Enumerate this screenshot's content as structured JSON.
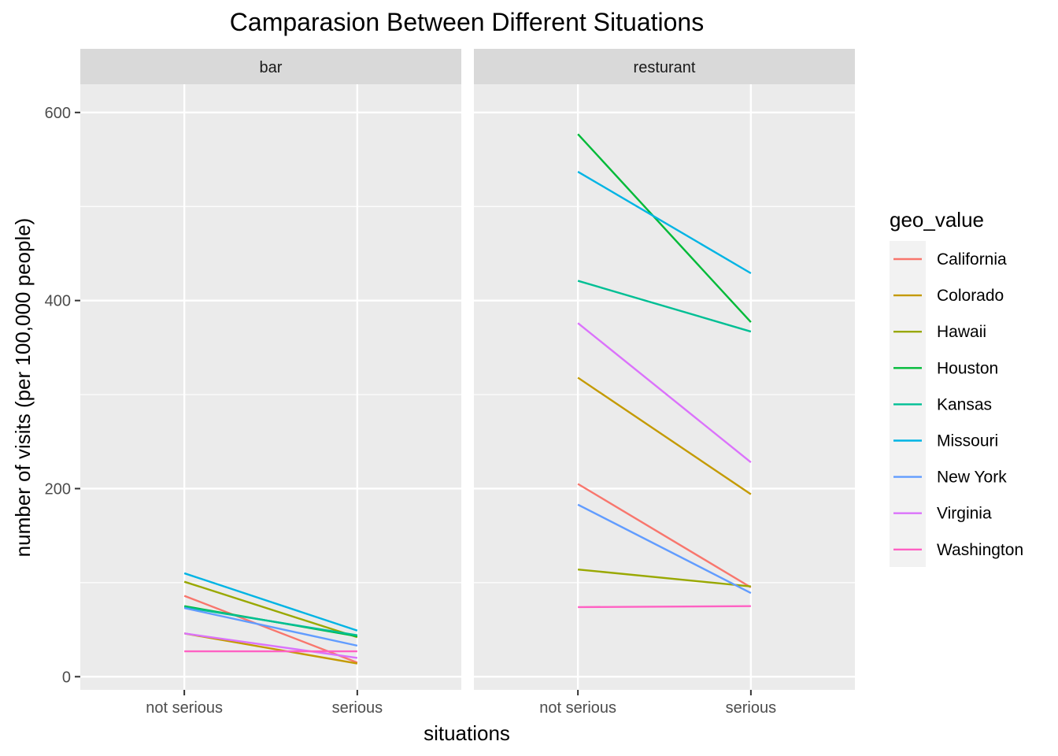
{
  "chart_data": {
    "type": "line",
    "title": "Camparasion Between Different Situations",
    "xlabel": "situations",
    "ylabel": "number of visits (per 100,000 people)",
    "categories": [
      "not serious",
      "serious"
    ],
    "ylim": [
      -14,
      630
    ],
    "yticks": [
      0,
      200,
      400,
      600
    ],
    "grid": true,
    "legend": {
      "title": "geo_value",
      "position": "right"
    },
    "facets": [
      {
        "label": "bar",
        "series": [
          {
            "name": "California",
            "color": "#F8766D",
            "values": [
              86,
              15
            ]
          },
          {
            "name": "Colorado",
            "color": "#C49A00",
            "values": [
              46,
              14
            ]
          },
          {
            "name": "Hawaii",
            "color": "#99A800",
            "values": [
              101,
              42
            ]
          },
          {
            "name": "Houston",
            "color": "#00BA38",
            "values": [
              75,
              43
            ]
          },
          {
            "name": "Kansas",
            "color": "#00BF94",
            "values": [
              74,
              44
            ]
          },
          {
            "name": "Missouri",
            "color": "#00B4E4",
            "values": [
              110,
              49
            ]
          },
          {
            "name": "New York",
            "color": "#619CFF",
            "values": [
              73,
              33
            ]
          },
          {
            "name": "Virginia",
            "color": "#DB72FB",
            "values": [
              46,
              20
            ]
          },
          {
            "name": "Washington",
            "color": "#FF61C3",
            "values": [
              27,
              27
            ]
          }
        ]
      },
      {
        "label": "resturant",
        "series": [
          {
            "name": "California",
            "color": "#F8766D",
            "values": [
              205,
              95
            ]
          },
          {
            "name": "Colorado",
            "color": "#C49A00",
            "values": [
              318,
              194
            ]
          },
          {
            "name": "Hawaii",
            "color": "#99A800",
            "values": [
              114,
              96
            ]
          },
          {
            "name": "Houston",
            "color": "#00BA38",
            "values": [
              577,
              377
            ]
          },
          {
            "name": "Kansas",
            "color": "#00BF94",
            "values": [
              421,
              367
            ]
          },
          {
            "name": "Missouri",
            "color": "#00B4E4",
            "values": [
              537,
              429
            ]
          },
          {
            "name": "New York",
            "color": "#619CFF",
            "values": [
              183,
              89
            ]
          },
          {
            "name": "Virginia",
            "color": "#DB72FB",
            "values": [
              376,
              228
            ]
          },
          {
            "name": "Washington",
            "color": "#FF61C3",
            "values": [
              74,
              75
            ]
          }
        ]
      }
    ]
  }
}
